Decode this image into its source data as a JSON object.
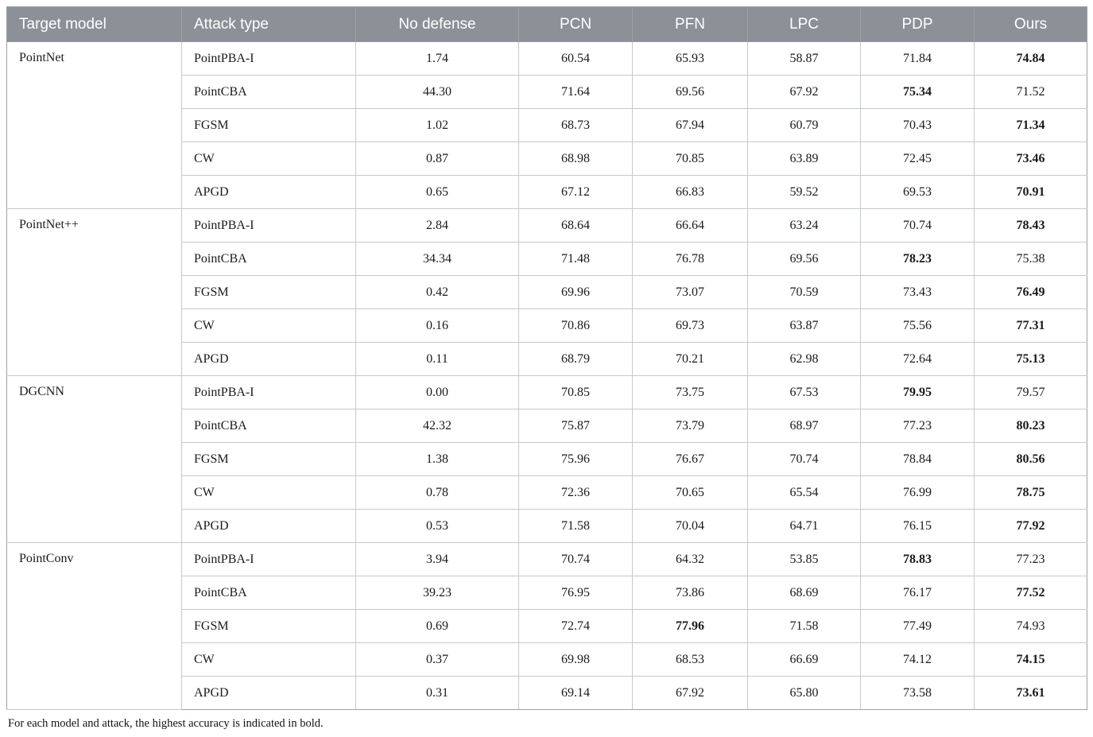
{
  "table": {
    "columns": [
      "Target model",
      "Attack type",
      "No defense",
      "PCN",
      "PFN",
      "LPC",
      "PDP",
      "Ours"
    ],
    "groups": [
      {
        "model": "PointNet",
        "rows": [
          {
            "attack": "PointPBA-I",
            "values": [
              "1.74",
              "60.54",
              "65.93",
              "58.87",
              "71.84",
              "74.84"
            ],
            "bold": 5
          },
          {
            "attack": "PointCBA",
            "values": [
              "44.30",
              "71.64",
              "69.56",
              "67.92",
              "75.34",
              "71.52"
            ],
            "bold": 4
          },
          {
            "attack": "FGSM",
            "values": [
              "1.02",
              "68.73",
              "67.94",
              "60.79",
              "70.43",
              "71.34"
            ],
            "bold": 5
          },
          {
            "attack": "CW",
            "values": [
              "0.87",
              "68.98",
              "70.85",
              "63.89",
              "72.45",
              "73.46"
            ],
            "bold": 5
          },
          {
            "attack": "APGD",
            "values": [
              "0.65",
              "67.12",
              "66.83",
              "59.52",
              "69.53",
              "70.91"
            ],
            "bold": 5
          }
        ]
      },
      {
        "model": "PointNet++",
        "rows": [
          {
            "attack": "PointPBA-I",
            "values": [
              "2.84",
              "68.64",
              "66.64",
              "63.24",
              "70.74",
              "78.43"
            ],
            "bold": 5
          },
          {
            "attack": "PointCBA",
            "values": [
              "34.34",
              "71.48",
              "76.78",
              "69.56",
              "78.23",
              "75.38"
            ],
            "bold": 4
          },
          {
            "attack": "FGSM",
            "values": [
              "0.42",
              "69.96",
              "73.07",
              "70.59",
              "73.43",
              "76.49"
            ],
            "bold": 5
          },
          {
            "attack": "CW",
            "values": [
              "0.16",
              "70.86",
              "69.73",
              "63.87",
              "75.56",
              "77.31"
            ],
            "bold": 5
          },
          {
            "attack": "APGD",
            "values": [
              "0.11",
              "68.79",
              "70.21",
              "62.98",
              "72.64",
              "75.13"
            ],
            "bold": 5
          }
        ]
      },
      {
        "model": "DGCNN",
        "rows": [
          {
            "attack": "PointPBA-I",
            "values": [
              "0.00",
              "70.85",
              "73.75",
              "67.53",
              "79.95",
              "79.57"
            ],
            "bold": 4
          },
          {
            "attack": "PointCBA",
            "values": [
              "42.32",
              "75.87",
              "73.79",
              "68.97",
              "77.23",
              "80.23"
            ],
            "bold": 5
          },
          {
            "attack": "FGSM",
            "values": [
              "1.38",
              "75.96",
              "76.67",
              "70.74",
              "78.84",
              "80.56"
            ],
            "bold": 5
          },
          {
            "attack": "CW",
            "values": [
              "0.78",
              "72.36",
              "70.65",
              "65.54",
              "76.99",
              "78.75"
            ],
            "bold": 5
          },
          {
            "attack": "APGD",
            "values": [
              "0.53",
              "71.58",
              "70.04",
              "64.71",
              "76.15",
              "77.92"
            ],
            "bold": 5
          }
        ]
      },
      {
        "model": "PointConv",
        "rows": [
          {
            "attack": "PointPBA-I",
            "values": [
              "3.94",
              "70.74",
              "64.32",
              "53.85",
              "78.83",
              "77.23"
            ],
            "bold": 4
          },
          {
            "attack": "PointCBA",
            "values": [
              "39.23",
              "76.95",
              "73.86",
              "68.69",
              "76.17",
              "77.52"
            ],
            "bold": 5
          },
          {
            "attack": "FGSM",
            "values": [
              "0.69",
              "72.74",
              "77.96",
              "71.58",
              "77.49",
              "74.93"
            ],
            "bold": 2
          },
          {
            "attack": "CW",
            "values": [
              "0.37",
              "69.98",
              "68.53",
              "66.69",
              "74.12",
              "74.15"
            ],
            "bold": 5
          },
          {
            "attack": "APGD",
            "values": [
              "0.31",
              "69.14",
              "67.92",
              "65.80",
              "73.58",
              "73.61"
            ],
            "bold": 5
          }
        ]
      }
    ],
    "footnote": "For each model and attack, the highest accuracy is indicated in bold."
  }
}
